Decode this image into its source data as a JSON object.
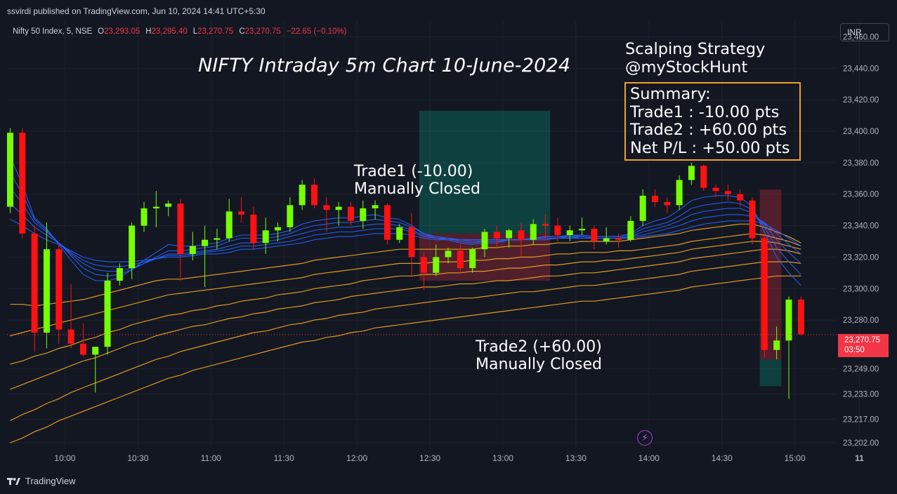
{
  "publisher": "ssvirdi published on TradingView.com, Jun 10, 2024 14:41 UTC+5:30",
  "symbol_line": {
    "symbol": "Nifty 50 Index, 5, NSE",
    "o_label": "O",
    "o_value": "23,293.05",
    "h_label": "H",
    "h_value": "23,295.40",
    "l_label": "L",
    "l_value": "23,270.75",
    "c_label": "C",
    "c_value": "23,270.75",
    "change": "−22.65 (−0.10%)"
  },
  "currency": "INR",
  "title": "NIFTY Intraday 5m Chart 10-June-2024",
  "strategy": {
    "line1": "Scalping Strategy",
    "line2": "@myStockHunt"
  },
  "summary": {
    "heading": "Summary:",
    "trade1": "Trade1 : -10.00 pts",
    "trade2": "Trade2 : +60.00 pts",
    "net": "Net P/L : +50.00 pts"
  },
  "annotations": {
    "trade1_line1": "Trade1 (-10.00)",
    "trade1_line2": "Manually Closed",
    "trade2_line1": "Trade2 (+60.00)",
    "trade2_line2": "Manually Closed"
  },
  "price_tag": {
    "price": "23,270.75",
    "countdown": "03:50"
  },
  "footer": {
    "brand": "TradingView"
  },
  "colors": {
    "up": "#76ff03",
    "down": "#ff1111",
    "ema_fast": "#2962ff",
    "ema_slow": "#f5a623",
    "background": "#131722"
  },
  "chart_data": {
    "type": "candlestick",
    "interval": "5m",
    "x_ticks": [
      "10:00",
      "10:30",
      "11:00",
      "11:30",
      "12:00",
      "12:30",
      "13:00",
      "13:30",
      "14:00",
      "14:30",
      "15:00",
      "11",
      "10:"
    ],
    "y_ticks": [
      "23,460.00",
      "23,440.00",
      "23,420.00",
      "23,400.00",
      "23,380.00",
      "23,360.00",
      "23,340.00",
      "23,320.00",
      "23,300.00",
      "23,280.00",
      "23,249.00",
      "23,233.00",
      "23,217.00",
      "23,202.00"
    ],
    "ylim": [
      23198,
      23470
    ],
    "candles": [
      {
        "o": 23352,
        "h": 23402,
        "l": 23348,
        "c": 23399
      },
      {
        "o": 23399,
        "h": 23402,
        "l": 23332,
        "c": 23335
      },
      {
        "o": 23335,
        "h": 23340,
        "l": 23260,
        "c": 23272
      },
      {
        "o": 23272,
        "h": 23342,
        "l": 23262,
        "c": 23325
      },
      {
        "o": 23325,
        "h": 23328,
        "l": 23265,
        "c": 23274
      },
      {
        "o": 23274,
        "h": 23303,
        "l": 23262,
        "c": 23265
      },
      {
        "o": 23265,
        "h": 23278,
        "l": 23257,
        "c": 23258
      },
      {
        "o": 23258,
        "h": 23262,
        "l": 23234,
        "c": 23263
      },
      {
        "o": 23263,
        "h": 23310,
        "l": 23258,
        "c": 23305
      },
      {
        "o": 23305,
        "h": 23316,
        "l": 23302,
        "c": 23313
      },
      {
        "o": 23313,
        "h": 23342,
        "l": 23306,
        "c": 23340
      },
      {
        "o": 23340,
        "h": 23355,
        "l": 23336,
        "c": 23351
      },
      {
        "o": 23351,
        "h": 23362,
        "l": 23339,
        "c": 23352
      },
      {
        "o": 23352,
        "h": 23356,
        "l": 23346,
        "c": 23354
      },
      {
        "o": 23354,
        "h": 23357,
        "l": 23305,
        "c": 23322
      },
      {
        "o": 23322,
        "h": 23336,
        "l": 23318,
        "c": 23327
      },
      {
        "o": 23327,
        "h": 23340,
        "l": 23301,
        "c": 23331
      },
      {
        "o": 23331,
        "h": 23338,
        "l": 23325,
        "c": 23332
      },
      {
        "o": 23332,
        "h": 23357,
        "l": 23330,
        "c": 23349
      },
      {
        "o": 23349,
        "h": 23358,
        "l": 23342,
        "c": 23347
      },
      {
        "o": 23347,
        "h": 23352,
        "l": 23325,
        "c": 23329
      },
      {
        "o": 23329,
        "h": 23345,
        "l": 23322,
        "c": 23337
      },
      {
        "o": 23337,
        "h": 23342,
        "l": 23330,
        "c": 23339
      },
      {
        "o": 23339,
        "h": 23358,
        "l": 23336,
        "c": 23353
      },
      {
        "o": 23353,
        "h": 23369,
        "l": 23350,
        "c": 23366
      },
      {
        "o": 23366,
        "h": 23370,
        "l": 23351,
        "c": 23353
      },
      {
        "o": 23353,
        "h": 23358,
        "l": 23336,
        "c": 23350
      },
      {
        "o": 23350,
        "h": 23355,
        "l": 23340,
        "c": 23352
      },
      {
        "o": 23352,
        "h": 23355,
        "l": 23340,
        "c": 23343
      },
      {
        "o": 23343,
        "h": 23356,
        "l": 23338,
        "c": 23351
      },
      {
        "o": 23351,
        "h": 23356,
        "l": 23344,
        "c": 23353
      },
      {
        "o": 23353,
        "h": 23354,
        "l": 23328,
        "c": 23331
      },
      {
        "o": 23331,
        "h": 23341,
        "l": 23329,
        "c": 23339
      },
      {
        "o": 23339,
        "h": 23348,
        "l": 23308,
        "c": 23320
      },
      {
        "o": 23320,
        "h": 23323,
        "l": 23299,
        "c": 23310
      },
      {
        "o": 23310,
        "h": 23328,
        "l": 23308,
        "c": 23320
      },
      {
        "o": 23320,
        "h": 23326,
        "l": 23316,
        "c": 23324
      },
      {
        "o": 23324,
        "h": 23328,
        "l": 23310,
        "c": 23313
      },
      {
        "o": 23313,
        "h": 23326,
        "l": 23310,
        "c": 23325
      },
      {
        "o": 23325,
        "h": 23338,
        "l": 23320,
        "c": 23336
      },
      {
        "o": 23336,
        "h": 23340,
        "l": 23326,
        "c": 23332
      },
      {
        "o": 23332,
        "h": 23338,
        "l": 23326,
        "c": 23337
      },
      {
        "o": 23337,
        "h": 23342,
        "l": 23320,
        "c": 23331
      },
      {
        "o": 23331,
        "h": 23344,
        "l": 23328,
        "c": 23341
      },
      {
        "o": 23341,
        "h": 23347,
        "l": 23332,
        "c": 23340
      },
      {
        "o": 23340,
        "h": 23345,
        "l": 23330,
        "c": 23334
      },
      {
        "o": 23334,
        "h": 23340,
        "l": 23330,
        "c": 23337
      },
      {
        "o": 23337,
        "h": 23345,
        "l": 23334,
        "c": 23338
      },
      {
        "o": 23338,
        "h": 23340,
        "l": 23325,
        "c": 23330
      },
      {
        "o": 23330,
        "h": 23339,
        "l": 23328,
        "c": 23332
      },
      {
        "o": 23332,
        "h": 23335,
        "l": 23326,
        "c": 23331
      },
      {
        "o": 23331,
        "h": 23346,
        "l": 23330,
        "c": 23343
      },
      {
        "o": 23343,
        "h": 23363,
        "l": 23340,
        "c": 23359
      },
      {
        "o": 23359,
        "h": 23363,
        "l": 23352,
        "c": 23355
      },
      {
        "o": 23355,
        "h": 23358,
        "l": 23348,
        "c": 23353
      },
      {
        "o": 23353,
        "h": 23372,
        "l": 23350,
        "c": 23369
      },
      {
        "o": 23369,
        "h": 23380,
        "l": 23366,
        "c": 23378
      },
      {
        "o": 23378,
        "h": 23379,
        "l": 23362,
        "c": 23364
      },
      {
        "o": 23364,
        "h": 23366,
        "l": 23358,
        "c": 23362
      },
      {
        "o": 23362,
        "h": 23366,
        "l": 23356,
        "c": 23360
      },
      {
        "o": 23360,
        "h": 23363,
        "l": 23352,
        "c": 23356
      },
      {
        "o": 23356,
        "h": 23358,
        "l": 23328,
        "c": 23332
      },
      {
        "o": 23332,
        "h": 23334,
        "l": 23256,
        "c": 23261
      },
      {
        "o": 23261,
        "h": 23276,
        "l": 23255,
        "c": 23267
      },
      {
        "o": 23267,
        "h": 23295,
        "l": 23230,
        "c": 23293
      },
      {
        "o": 23293,
        "h": 23295,
        "l": 23270,
        "c": 23271
      }
    ],
    "ema_fast": [
      [
        23384,
        23366,
        23345,
        23338,
        23328,
        23318,
        23309,
        23305,
        23305,
        23307,
        23312,
        23318,
        23323,
        23328,
        23327,
        23327,
        23328,
        23329,
        23332,
        23334,
        23334,
        23334,
        23335,
        23337,
        23341,
        23343,
        23344,
        23345,
        23345,
        23346,
        23347,
        23345,
        23344,
        23340,
        23335,
        23332,
        23331,
        23329,
        23328,
        23329,
        23329,
        23331,
        23331,
        23332,
        23333,
        23333,
        23334,
        23334,
        23333,
        23333,
        23333,
        23335,
        23340,
        23343,
        23345,
        23350,
        23356,
        23358,
        23359,
        23359,
        23358,
        23352,
        23336,
        23320,
        23310,
        23302
      ],
      [
        23374,
        23360,
        23344,
        23337,
        23329,
        23321,
        23313,
        23309,
        23308,
        23309,
        23312,
        23316,
        23320,
        23324,
        23324,
        23325,
        23326,
        23327,
        23330,
        23332,
        23332,
        23332,
        23333,
        23335,
        23338,
        23340,
        23341,
        23342,
        23342,
        23343,
        23344,
        23343,
        23342,
        23339,
        23335,
        23333,
        23332,
        23330,
        23329,
        23330,
        23330,
        23331,
        23331,
        23332,
        23333,
        23333,
        23333,
        23334,
        23333,
        23333,
        23333,
        23334,
        23338,
        23340,
        23342,
        23346,
        23351,
        23353,
        23354,
        23355,
        23354,
        23350,
        23339,
        23326,
        23317,
        23309
      ],
      [
        23364,
        23354,
        23342,
        23336,
        23329,
        23322,
        23316,
        23312,
        23311,
        23311,
        23313,
        23316,
        23319,
        23322,
        23322,
        23323,
        23324,
        23325,
        23327,
        23329,
        23329,
        23330,
        23331,
        23333,
        23335,
        23337,
        23338,
        23339,
        23339,
        23340,
        23341,
        23341,
        23340,
        23337,
        23334,
        23332,
        23332,
        23331,
        23330,
        23330,
        23330,
        23331,
        23331,
        23332,
        23332,
        23332,
        23333,
        23333,
        23332,
        23332,
        23332,
        23333,
        23336,
        23338,
        23340,
        23343,
        23347,
        23349,
        23350,
        23351,
        23351,
        23348,
        23341,
        23331,
        23323,
        23316
      ],
      [
        23354,
        23347,
        23339,
        23334,
        23329,
        23323,
        23318,
        23315,
        23314,
        23314,
        23315,
        23317,
        23319,
        23321,
        23321,
        23322,
        23323,
        23324,
        23325,
        23327,
        23327,
        23328,
        23329,
        23330,
        23332,
        23334,
        23335,
        23336,
        23336,
        23337,
        23338,
        23338,
        23338,
        23336,
        23333,
        23332,
        23332,
        23331,
        23331,
        23331,
        23331,
        23331,
        23331,
        23332,
        23332,
        23332,
        23332,
        23333,
        23332,
        23332,
        23332,
        23333,
        23334,
        23336,
        23338,
        23340,
        23343,
        23345,
        23346,
        23347,
        23347,
        23346,
        23342,
        23335,
        23328,
        23322
      ],
      [
        23344,
        23340,
        23335,
        23331,
        23328,
        23324,
        23320,
        23318,
        23317,
        23317,
        23317,
        23318,
        23319,
        23320,
        23320,
        23321,
        23322,
        23322,
        23323,
        23325,
        23325,
        23326,
        23327,
        23328,
        23329,
        23331,
        23332,
        23333,
        23333,
        23334,
        23335,
        23335,
        23335,
        23334,
        23332,
        23331,
        23331,
        23331,
        23331,
        23331,
        23331,
        23331,
        23331,
        23331,
        23331,
        23332,
        23332,
        23332,
        23332,
        23332,
        23332,
        23332,
        23333,
        23334,
        23335,
        23337,
        23339,
        23341,
        23342,
        23343,
        23343,
        23343,
        23341,
        23337,
        23332,
        23327
      ]
    ],
    "ema_slow": [
      [
        23290,
        23290,
        23289,
        23290,
        23291,
        23292,
        23293,
        23295,
        23297,
        23299,
        23301,
        23303,
        23305,
        23306,
        23306,
        23307,
        23308,
        23309,
        23310,
        23311,
        23312,
        23313,
        23314,
        23315,
        23316,
        23318,
        23319,
        23320,
        23321,
        23322,
        23323,
        23324,
        23325,
        23325,
        23325,
        23325,
        23325,
        23325,
        23325,
        23326,
        23326,
        23327,
        23327,
        23328,
        23328,
        23329,
        23329,
        23330,
        23330,
        23330,
        23330,
        23331,
        23332,
        23333,
        23334,
        23335,
        23337,
        23338,
        23339,
        23340,
        23341,
        23341,
        23339,
        23336,
        23333,
        23329
      ],
      [
        23270,
        23272,
        23274,
        23276,
        23278,
        23280,
        23282,
        23284,
        23286,
        23288,
        23290,
        23292,
        23294,
        23296,
        23297,
        23298,
        23299,
        23300,
        23301,
        23302,
        23303,
        23304,
        23305,
        23306,
        23307,
        23309,
        23310,
        23311,
        23312,
        23313,
        23314,
        23315,
        23316,
        23316,
        23316,
        23317,
        23317,
        23317,
        23318,
        23318,
        23319,
        23319,
        23320,
        23320,
        23321,
        23322,
        23322,
        23323,
        23323,
        23323,
        23324,
        23324,
        23325,
        23326,
        23327,
        23328,
        23330,
        23331,
        23332,
        23333,
        23334,
        23335,
        23334,
        23332,
        23330,
        23327
      ],
      [
        23252,
        23254,
        23257,
        23259,
        23262,
        23264,
        23267,
        23269,
        23272,
        23274,
        23277,
        23279,
        23281,
        23283,
        23284,
        23286,
        23287,
        23289,
        23290,
        23292,
        23293,
        23294,
        23296,
        23297,
        23298,
        23300,
        23301,
        23302,
        23303,
        23305,
        23306,
        23307,
        23308,
        23308,
        23309,
        23309,
        23310,
        23310,
        23311,
        23311,
        23312,
        23313,
        23313,
        23314,
        23315,
        23315,
        23316,
        23317,
        23317,
        23318,
        23318,
        23319,
        23320,
        23321,
        23322,
        23323,
        23325,
        23326,
        23327,
        23328,
        23329,
        23330,
        23330,
        23329,
        23327,
        23325
      ],
      [
        23236,
        23239,
        23242,
        23245,
        23248,
        23251,
        23254,
        23256,
        23259,
        23262,
        23265,
        23267,
        23270,
        23272,
        23274,
        23276,
        23277,
        23279,
        23281,
        23282,
        23284,
        23285,
        23287,
        23288,
        23289,
        23291,
        23292,
        23293,
        23295,
        23296,
        23297,
        23298,
        23299,
        23300,
        23301,
        23301,
        23302,
        23303,
        23303,
        23304,
        23305,
        23305,
        23306,
        23307,
        23308,
        23308,
        23309,
        23310,
        23310,
        23311,
        23312,
        23313,
        23314,
        23315,
        23316,
        23317,
        23319,
        23320,
        23321,
        23322,
        23323,
        23324,
        23325,
        23325,
        23324,
        23322
      ],
      [
        23216,
        23220,
        23223,
        23227,
        23230,
        23234,
        23237,
        23240,
        23243,
        23246,
        23249,
        23252,
        23255,
        23257,
        23260,
        23262,
        23264,
        23266,
        23268,
        23270,
        23272,
        23273,
        23275,
        23277,
        23278,
        23280,
        23281,
        23283,
        23284,
        23285,
        23287,
        23288,
        23289,
        23290,
        23291,
        23292,
        23293,
        23294,
        23294,
        23295,
        23296,
        23297,
        23298,
        23298,
        23299,
        23300,
        23301,
        23302,
        23302,
        23303,
        23304,
        23305,
        23306,
        23307,
        23308,
        23309,
        23311,
        23312,
        23313,
        23314,
        23315,
        23316,
        23317,
        23317,
        23317,
        23316
      ],
      [
        23202,
        23205,
        23209,
        23212,
        23216,
        23219,
        23222,
        23225,
        23228,
        23231,
        23234,
        23237,
        23240,
        23243,
        23245,
        23248,
        23250,
        23252,
        23254,
        23256,
        23258,
        23260,
        23262,
        23264,
        23266,
        23267,
        23269,
        23270,
        23272,
        23273,
        23275,
        23276,
        23277,
        23278,
        23279,
        23280,
        23281,
        23282,
        23283,
        23284,
        23285,
        23286,
        23287,
        23288,
        23289,
        23290,
        23291,
        23292,
        23292,
        23293,
        23294,
        23295,
        23296,
        23297,
        23298,
        23299,
        23301,
        23302,
        23303,
        23304,
        23305,
        23306,
        23307,
        23308,
        23308,
        23308
      ]
    ],
    "trade_boxes": [
      {
        "start": 34,
        "end": 44,
        "entry": 23335,
        "target": 23413,
        "stop": 23305
      },
      {
        "start": 62,
        "end": 63,
        "entry": 23255,
        "target": 23238,
        "stop": 23363
      }
    ],
    "last_price": 23270.75
  }
}
